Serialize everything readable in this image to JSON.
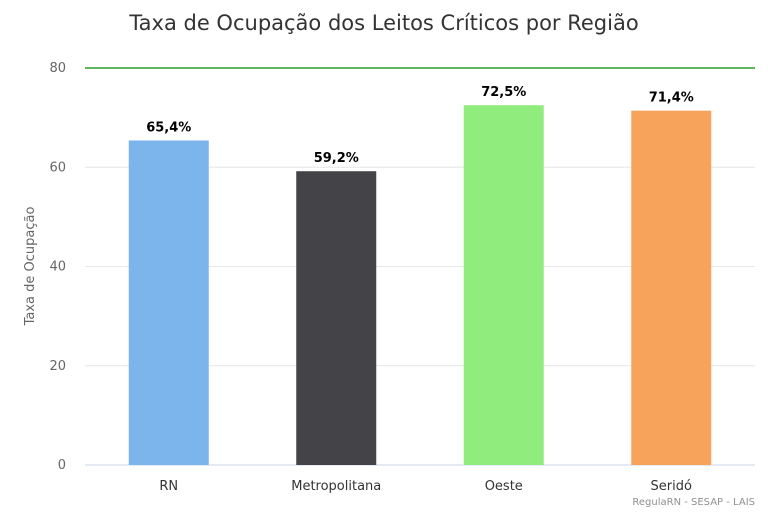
{
  "chart_data": {
    "type": "bar",
    "title": "Taxa de Ocupação dos Leitos Críticos por Região",
    "ylabel": "Taxa de Ocupação",
    "xlabel": "",
    "categories": [
      "RN",
      "Metropolitana",
      "Oeste",
      "Seridó"
    ],
    "values": [
      65.4,
      59.2,
      72.5,
      71.4
    ],
    "data_labels": [
      "65,4%",
      "59,2%",
      "72,5%",
      "71,4%"
    ],
    "colors": [
      "#7cb5ec",
      "#434348",
      "#90ed7d",
      "#f7a35c"
    ],
    "ylim": [
      0,
      80
    ],
    "yticks": [
      0,
      20,
      40,
      60,
      80
    ],
    "grid": true,
    "reference_line": {
      "value": 80,
      "color": "#2e9e2e"
    },
    "credits": "RegulaRN - SESAP - LAIS"
  }
}
